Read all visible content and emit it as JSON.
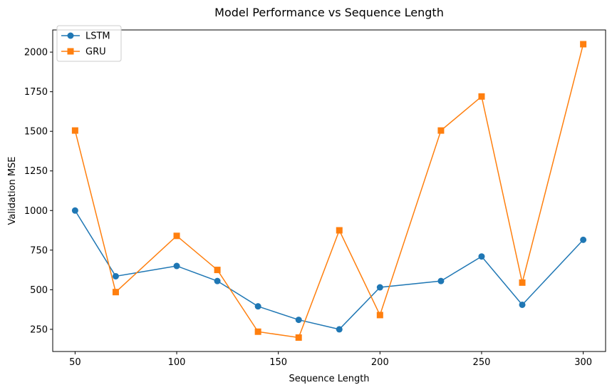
{
  "chart_data": {
    "type": "line",
    "title": "Model Performance vs Sequence Length",
    "xlabel": "Sequence Length",
    "ylabel": "Validation MSE",
    "xlim": [
      39,
      311
    ],
    "ylim": [
      110,
      2140
    ],
    "xticks": [
      50,
      100,
      150,
      200,
      250,
      300
    ],
    "yticks": [
      250,
      500,
      750,
      1000,
      1250,
      1500,
      1750,
      2000
    ],
    "grid": false,
    "legend": "top-left",
    "x": [
      50,
      70,
      100,
      120,
      140,
      160,
      180,
      200,
      230,
      250,
      270,
      300
    ],
    "series": [
      {
        "name": "LSTM",
        "color": "#1f77b4",
        "marker": "circle",
        "values": [
          1000,
          585,
          650,
          555,
          395,
          310,
          250,
          515,
          555,
          710,
          405,
          815
        ]
      },
      {
        "name": "GRU",
        "color": "#ff7f0e",
        "marker": "square",
        "values": [
          1505,
          485,
          840,
          625,
          235,
          198,
          875,
          340,
          1505,
          1720,
          545,
          2050
        ]
      }
    ]
  }
}
